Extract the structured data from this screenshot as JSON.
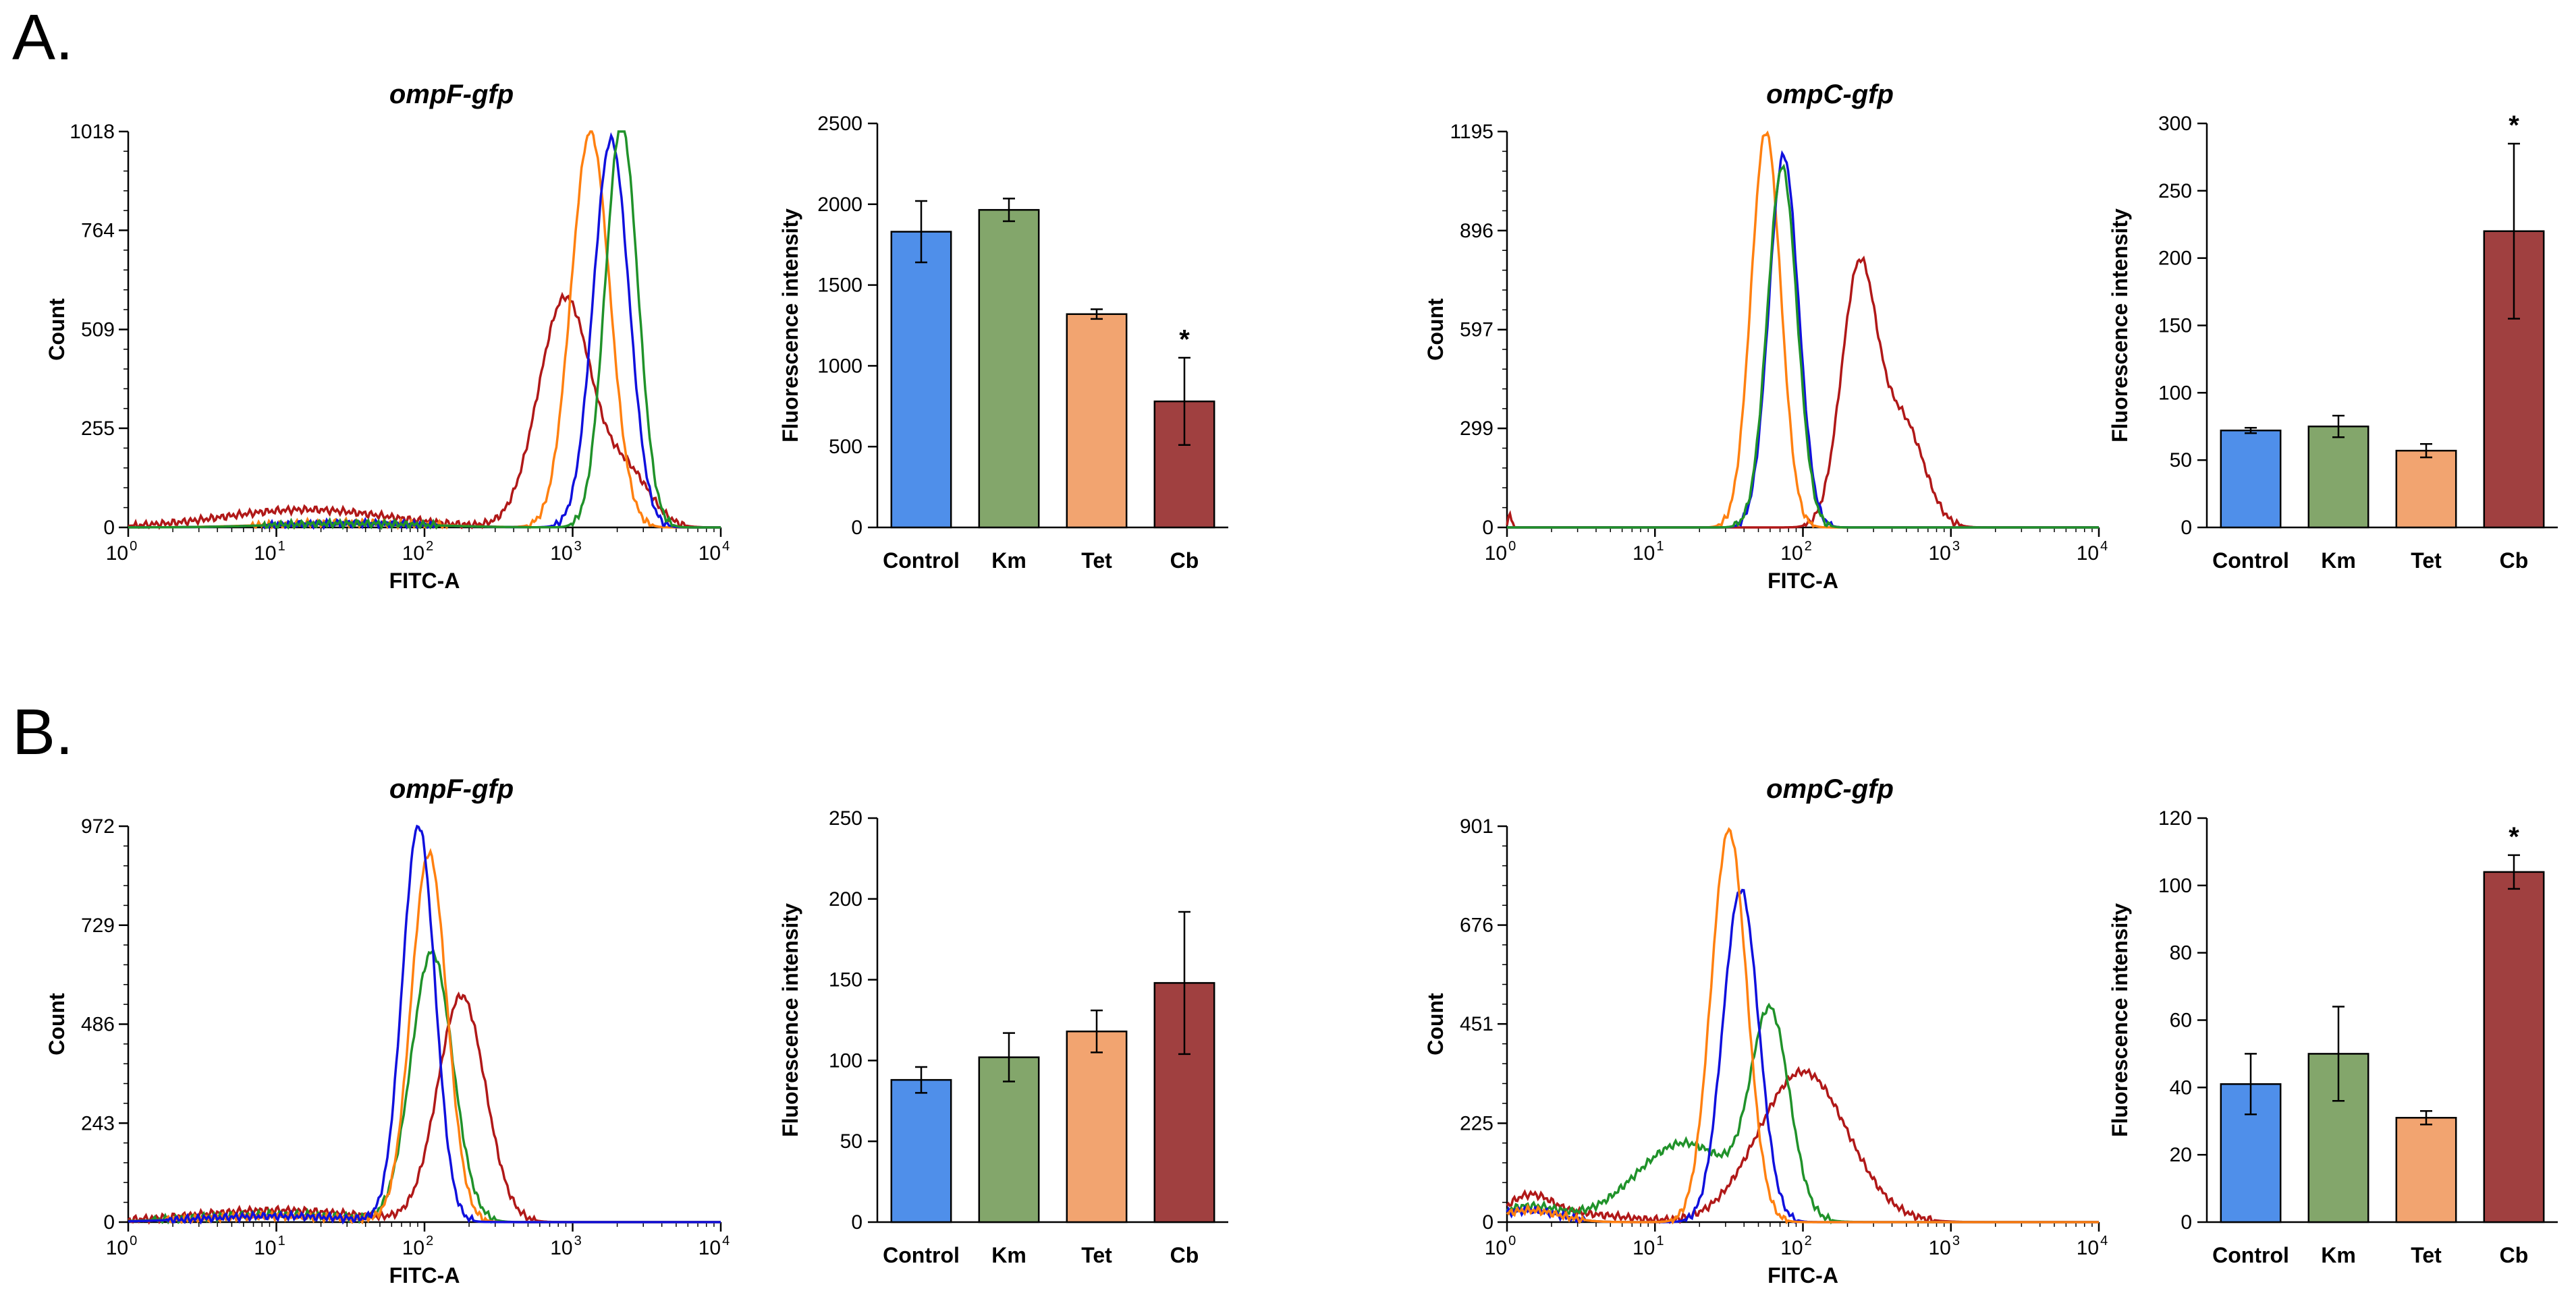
{
  "figure": {
    "colors": {
      "control": "#4f8fea",
      "km": "#83a66b",
      "tet": "#f2a470",
      "cb": "#a04040",
      "line_blue": "#1010dd",
      "line_orange": "#ff8010",
      "line_green": "#20922a",
      "line_red": "#b01818"
    }
  },
  "panels": [
    {
      "label": "A.",
      "histograms": [
        {
          "title": "ompF-gfp",
          "xlabel": "FITC-A",
          "ylabel": "Count",
          "ymax": 1018,
          "yticks": [
            0,
            255,
            509,
            764,
            1018
          ],
          "peaks": [
            {
              "color": "line_red",
              "comps": [
                [
                  2.95,
                  0.58,
                  0.18
                ],
                [
                  3.38,
                  0.13,
                  0.15
                ],
                [
                  1.2,
                  0.045,
                  0.55
                ]
              ]
            },
            {
              "color": "line_orange",
              "comps": [
                [
                  3.12,
                  1.0,
                  0.13
                ],
                [
                  1.5,
                  0.012,
                  0.5
                ]
              ]
            },
            {
              "color": "line_blue",
              "comps": [
                [
                  3.26,
                  0.98,
                  0.12
                ],
                [
                  1.5,
                  0.01,
                  0.5
                ]
              ]
            },
            {
              "color": "line_green",
              "comps": [
                [
                  3.33,
                  1.02,
                  0.11
                ],
                [
                  1.5,
                  0.01,
                  0.5
                ]
              ]
            }
          ]
        },
        {
          "title": "ompC-gfp",
          "xlabel": "FITC-A",
          "ylabel": "Count",
          "ymax": 1195,
          "yticks": [
            0,
            299,
            597,
            896,
            1195
          ],
          "peaks": [
            {
              "color": "line_red",
              "comps": [
                [
                  2.38,
                  0.65,
                  0.12
                ],
                [
                  2.68,
                  0.26,
                  0.14
                ],
                [
                  0.02,
                  0.04,
                  0.01
                ]
              ]
            },
            {
              "color": "line_orange",
              "comps": [
                [
                  1.75,
                  1.0,
                  0.1
                ]
              ]
            },
            {
              "color": "line_blue",
              "comps": [
                [
                  1.87,
                  0.94,
                  0.1
                ]
              ]
            },
            {
              "color": "line_green",
              "comps": [
                [
                  1.86,
                  0.91,
                  0.1
                ]
              ]
            }
          ]
        }
      ],
      "bars": [
        {
          "ylabel": "Fluorescence intensity",
          "ymax": 2500,
          "yticks": [
            0,
            500,
            1000,
            1500,
            2000,
            2500
          ],
          "categories": [
            "Control",
            "Km",
            "Tet",
            "Cb"
          ],
          "values": [
            1830,
            1965,
            1320,
            780
          ],
          "errors": [
            190,
            70,
            30,
            270
          ],
          "significance": [
            "",
            "",
            "",
            "*"
          ]
        },
        {
          "ylabel": "Fluorescence intensity",
          "ymax": 300,
          "yticks": [
            0,
            50,
            100,
            150,
            200,
            250,
            300
          ],
          "categories": [
            "Control",
            "Km",
            "Tet",
            "Cb"
          ],
          "values": [
            72,
            75,
            57,
            220
          ],
          "errors": [
            2,
            8,
            5,
            65
          ],
          "significance": [
            "",
            "",
            "",
            "*"
          ]
        }
      ]
    },
    {
      "label": "B.",
      "histograms": [
        {
          "title": "ompF-gfp",
          "xlabel": "FITC-A",
          "ylabel": "Count",
          "ymax": 972,
          "yticks": [
            0,
            243,
            486,
            729,
            972
          ],
          "peaks": [
            {
              "color": "line_red",
              "comps": [
                [
                  2.25,
                  0.57,
                  0.16
                ],
                [
                  1.0,
                  0.03,
                  0.55
                ]
              ]
            },
            {
              "color": "line_green",
              "comps": [
                [
                  2.05,
                  0.68,
                  0.14
                ],
                [
                  1.0,
                  0.02,
                  0.5
                ]
              ]
            },
            {
              "color": "line_orange",
              "comps": [
                [
                  2.03,
                  0.93,
                  0.12
                ],
                [
                  1.0,
                  0.015,
                  0.5
                ]
              ]
            },
            {
              "color": "line_blue",
              "comps": [
                [
                  1.96,
                  1.0,
                  0.11
                ],
                [
                  1.0,
                  0.015,
                  0.5
                ]
              ]
            }
          ]
        },
        {
          "title": "ompC-gfp",
          "xlabel": "FITC-A",
          "ylabel": "Count",
          "ymax": 901,
          "yticks": [
            0,
            225,
            451,
            676,
            901
          ],
          "peaks": [
            {
              "color": "line_red",
              "comps": [
                [
                  2.0,
                  0.38,
                  0.3
                ],
                [
                  0.15,
                  0.06,
                  0.15
                ],
                [
                  0.5,
                  0.02,
                  0.3
                ]
              ]
            },
            {
              "color": "line_green",
              "comps": [
                [
                  1.78,
                  0.5,
                  0.13
                ],
                [
                  1.2,
                  0.2,
                  0.33
                ],
                [
                  0.15,
                  0.04,
                  0.2
                ]
              ]
            },
            {
              "color": "line_blue",
              "comps": [
                [
                  1.58,
                  0.84,
                  0.12
                ],
                [
                  0.15,
                  0.03,
                  0.2
                ]
              ]
            },
            {
              "color": "line_orange",
              "comps": [
                [
                  1.5,
                  0.99,
                  0.12
                ],
                [
                  0.15,
                  0.03,
                  0.2
                ]
              ]
            }
          ]
        }
      ],
      "bars": [
        {
          "ylabel": "Fluorescence intensity",
          "ymax": 250,
          "yticks": [
            0,
            50,
            100,
            150,
            200,
            250
          ],
          "categories": [
            "Control",
            "Km",
            "Tet",
            "Cb"
          ],
          "values": [
            88,
            102,
            118,
            148
          ],
          "errors": [
            8,
            15,
            13,
            44
          ],
          "significance": [
            "",
            "",
            "",
            ""
          ]
        },
        {
          "ylabel": "Fluorescence intensity",
          "ymax": 120,
          "yticks": [
            0,
            20,
            40,
            60,
            80,
            100,
            120
          ],
          "categories": [
            "Control",
            "Km",
            "Tet",
            "Cb"
          ],
          "values": [
            41,
            50,
            31,
            104
          ],
          "errors": [
            9,
            14,
            2,
            5
          ],
          "significance": [
            "",
            "",
            "",
            "*"
          ]
        }
      ]
    }
  ],
  "chart_data": [
    {
      "type": "line",
      "panel": "A",
      "title": "ompF-gfp",
      "xlabel": "FITC-A",
      "ylabel": "Count",
      "xscale": "log",
      "xlim": [
        1,
        10000
      ],
      "ylim": [
        0,
        1018
      ],
      "series": [
        "Control (blue)",
        "Km (green)",
        "Tet (orange)",
        "Cb (red)"
      ]
    },
    {
      "type": "bar",
      "panel": "A",
      "ylabel": "Fluorescence intensity",
      "categories": [
        "Control",
        "Km",
        "Tet",
        "Cb"
      ],
      "values": [
        1830,
        1965,
        1320,
        780
      ],
      "ylim": [
        0,
        2500
      ]
    },
    {
      "type": "line",
      "panel": "A",
      "title": "ompC-gfp",
      "xlabel": "FITC-A",
      "ylabel": "Count",
      "xscale": "log",
      "xlim": [
        1,
        10000
      ],
      "ylim": [
        0,
        1195
      ],
      "series": [
        "Control (blue)",
        "Km (green)",
        "Tet (orange)",
        "Cb (red)"
      ]
    },
    {
      "type": "bar",
      "panel": "A",
      "ylabel": "Fluorescence intensity",
      "categories": [
        "Control",
        "Km",
        "Tet",
        "Cb"
      ],
      "values": [
        72,
        75,
        57,
        220
      ],
      "ylim": [
        0,
        300
      ]
    },
    {
      "type": "line",
      "panel": "B",
      "title": "ompF-gfp",
      "xlabel": "FITC-A",
      "ylabel": "Count",
      "xscale": "log",
      "xlim": [
        1,
        10000
      ],
      "ylim": [
        0,
        972
      ],
      "series": [
        "Control (blue)",
        "Km (green)",
        "Tet (orange)",
        "Cb (red)"
      ]
    },
    {
      "type": "bar",
      "panel": "B",
      "ylabel": "Fluorescence intensity",
      "categories": [
        "Control",
        "Km",
        "Tet",
        "Cb"
      ],
      "values": [
        88,
        102,
        118,
        148
      ],
      "ylim": [
        0,
        250
      ]
    },
    {
      "type": "line",
      "panel": "B",
      "title": "ompC-gfp",
      "xlabel": "FITC-A",
      "ylabel": "Count",
      "xscale": "log",
      "xlim": [
        1,
        10000
      ],
      "ylim": [
        0,
        901
      ],
      "series": [
        "Control (blue)",
        "Km (green)",
        "Tet (orange)",
        "Cb (red)"
      ]
    },
    {
      "type": "bar",
      "panel": "B",
      "ylabel": "Fluorescence intensity",
      "categories": [
        "Control",
        "Km",
        "Tet",
        "Cb"
      ],
      "values": [
        41,
        50,
        31,
        104
      ],
      "ylim": [
        0,
        120
      ]
    }
  ]
}
